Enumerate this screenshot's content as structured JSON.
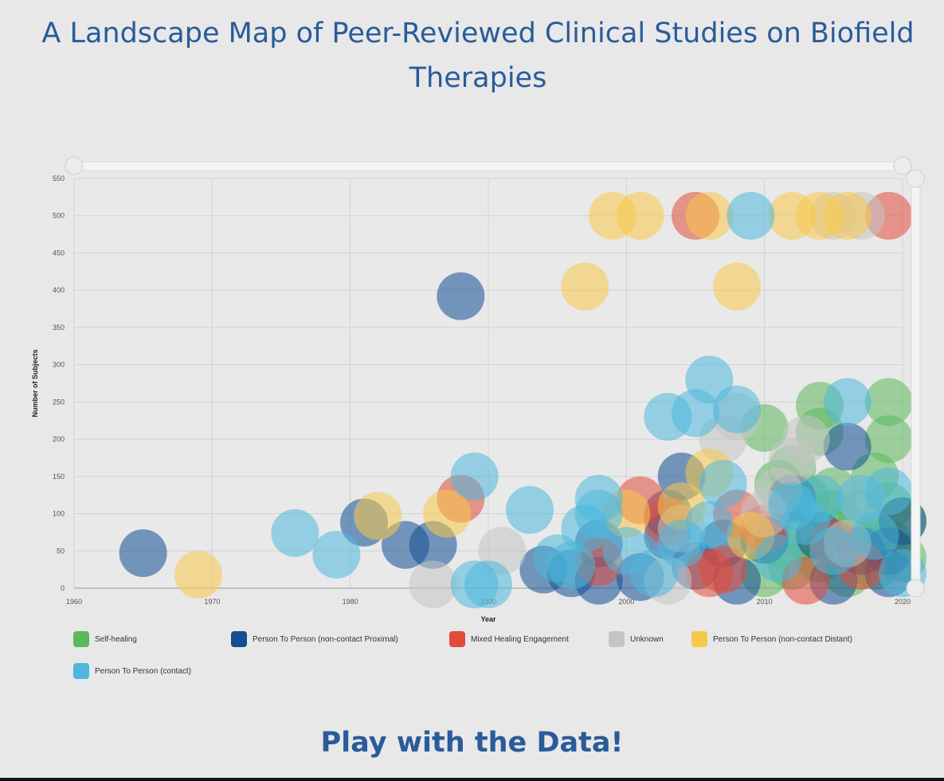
{
  "page": {
    "title": "A Landscape Map of Peer-Reviewed Clinical Studies on Biofield Therapies",
    "cta_label": "Play with the Data!"
  },
  "chart_data": {
    "type": "scatter",
    "xlabel": "Year",
    "ylabel": "Number of Subjects",
    "xlim": [
      1960,
      2020
    ],
    "ylim": [
      0,
      550
    ],
    "x_ticks": [
      "1960",
      "1970",
      "1980",
      "1990",
      "2000",
      "2010",
      "2020"
    ],
    "y_ticks": [
      "0",
      "50",
      "100",
      "150",
      "200",
      "250",
      "300",
      "350",
      "400",
      "450",
      "500",
      "550"
    ],
    "grid": true,
    "legend_position": "bottom",
    "series": [
      {
        "name": "Self-healing",
        "color": "#5cb85c",
        "points": [
          [
            2010,
            215
          ],
          [
            2014,
            245
          ],
          [
            2014,
            210
          ],
          [
            2019,
            250
          ],
          [
            2019,
            200
          ],
          [
            2012,
            160
          ],
          [
            2013,
            120
          ],
          [
            2015,
            100
          ],
          [
            2016,
            80
          ],
          [
            2018,
            150
          ],
          [
            2019,
            110
          ],
          [
            2020,
            90
          ],
          [
            2011,
            60
          ],
          [
            2012,
            30
          ],
          [
            2014,
            40
          ],
          [
            2016,
            20
          ],
          [
            2017,
            60
          ],
          [
            2018,
            30
          ],
          [
            2020,
            40
          ],
          [
            2010,
            20
          ],
          [
            2013,
            70
          ],
          [
            2015,
            130
          ],
          [
            2019,
            60
          ],
          [
            2011,
            140
          ],
          [
            2017,
            100
          ]
        ]
      },
      {
        "name": "Person To Person (non-contact Proximal)",
        "color": "#124f94",
        "points": [
          [
            1965,
            47
          ],
          [
            1988,
            392
          ],
          [
            1981,
            88
          ],
          [
            1984,
            58
          ],
          [
            1986,
            58
          ],
          [
            1994,
            25
          ],
          [
            1996,
            20
          ],
          [
            1998,
            60
          ],
          [
            1998,
            10
          ],
          [
            2001,
            15
          ],
          [
            2003,
            70
          ],
          [
            2004,
            150
          ],
          [
            2003,
            100
          ],
          [
            2007,
            60
          ],
          [
            2008,
            10
          ],
          [
            2010,
            65
          ],
          [
            2012,
            120
          ],
          [
            2016,
            190
          ],
          [
            2014,
            70
          ],
          [
            2017,
            50
          ],
          [
            2019,
            50
          ],
          [
            2019,
            20
          ],
          [
            2020,
            90
          ],
          [
            2015,
            10
          ],
          [
            2005,
            30
          ]
        ]
      },
      {
        "name": "Mixed Healing Engagement",
        "color": "#e24b3b",
        "points": [
          [
            1988,
            120
          ],
          [
            2001,
            118
          ],
          [
            2005,
            500
          ],
          [
            2019,
            500
          ],
          [
            1998,
            35
          ],
          [
            2006,
            20
          ],
          [
            2008,
            100
          ],
          [
            2010,
            80
          ],
          [
            2013,
            10
          ],
          [
            2015,
            60
          ],
          [
            2017,
            30
          ],
          [
            2003,
            90
          ],
          [
            2007,
            25
          ]
        ]
      },
      {
        "name": "Unknown",
        "color": "#c4c4c4",
        "points": [
          [
            1986,
            5
          ],
          [
            1991,
            50
          ],
          [
            2015,
            500
          ],
          [
            2017,
            500
          ],
          [
            2007,
            200
          ],
          [
            2010,
            100
          ],
          [
            2012,
            170
          ],
          [
            2017,
            120
          ],
          [
            2016,
            60
          ],
          [
            2004,
            80
          ],
          [
            2008,
            230
          ],
          [
            2011,
            130
          ],
          [
            2013,
            200
          ],
          [
            2003,
            10
          ]
        ]
      },
      {
        "name": "Person To Person (non-contact Distant)",
        "color": "#f7c948",
        "points": [
          [
            1969,
            18
          ],
          [
            1982,
            97
          ],
          [
            1987,
            100
          ],
          [
            1997,
            405
          ],
          [
            1999,
            500
          ],
          [
            2001,
            500
          ],
          [
            2006,
            500
          ],
          [
            2008,
            405
          ],
          [
            2012,
            500
          ],
          [
            2014,
            500
          ],
          [
            2016,
            500
          ],
          [
            2006,
            155
          ],
          [
            2000,
            100
          ],
          [
            2004,
            110
          ],
          [
            2009,
            70
          ]
        ]
      },
      {
        "name": "Person To Person (contact)",
        "color": "#4cb8dd",
        "points": [
          [
            1976,
            74
          ],
          [
            1979,
            45
          ],
          [
            1989,
            150
          ],
          [
            1993,
            105
          ],
          [
            1990,
            5
          ],
          [
            1989,
            5
          ],
          [
            1995,
            40
          ],
          [
            1997,
            80
          ],
          [
            1998,
            120
          ],
          [
            1998,
            100
          ],
          [
            2000,
            50
          ],
          [
            2003,
            230
          ],
          [
            2005,
            235
          ],
          [
            2006,
            280
          ],
          [
            2008,
            240
          ],
          [
            2009,
            500
          ],
          [
            2006,
            85
          ],
          [
            2004,
            60
          ],
          [
            2012,
            110
          ],
          [
            2014,
            120
          ],
          [
            2015,
            50
          ],
          [
            2016,
            250
          ],
          [
            2017,
            120
          ],
          [
            2018,
            70
          ],
          [
            2020,
            20
          ],
          [
            2013,
            90
          ],
          [
            2011,
            40
          ],
          [
            2002,
            20
          ],
          [
            2007,
            140
          ],
          [
            1996,
            30
          ],
          [
            2019,
            130
          ]
        ]
      }
    ]
  }
}
